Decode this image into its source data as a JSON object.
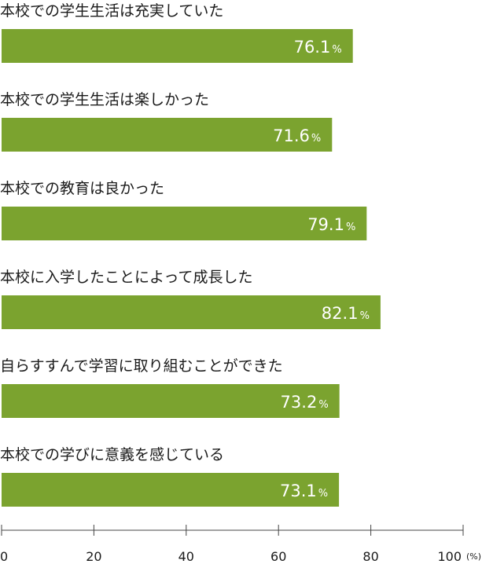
{
  "chart_data": {
    "type": "bar",
    "orientation": "horizontal",
    "categories": [
      "本校での学生生活は充実していた",
      "本校での学生生活は楽しかった",
      "本校での教育は良かった",
      "本校に入学したことによって成長した",
      "自らすすんで学習に取り組むことができた",
      "本校での学びに意義を感じている"
    ],
    "values": [
      76.1,
      71.6,
      79.1,
      82.1,
      73.2,
      73.1
    ],
    "value_suffix": "%",
    "xlim": [
      0,
      100
    ],
    "x_ticks": [
      "0",
      "20",
      "40",
      "60",
      "80",
      "100"
    ],
    "x_unit": "(%)",
    "bar_color": "#7ba32f",
    "grid": false
  }
}
